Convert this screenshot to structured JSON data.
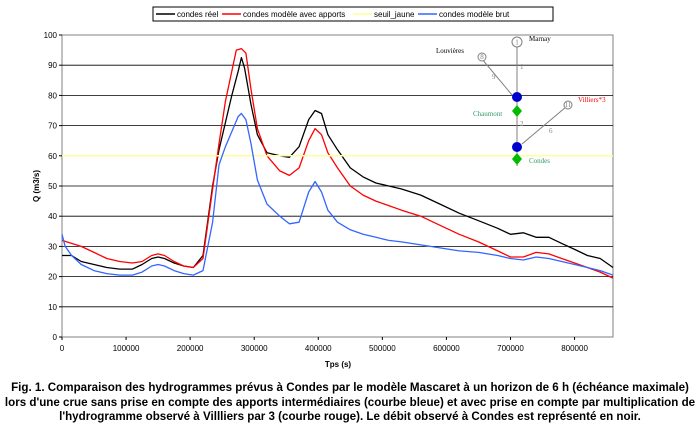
{
  "chart_data": {
    "type": "line",
    "xlabel": "Tps (s)",
    "ylabel": "Q (m3/s)",
    "xlim": [
      0,
      860000
    ],
    "ylim": [
      0,
      100
    ],
    "xticks": [
      0,
      100000,
      200000,
      300000,
      400000,
      500000,
      600000,
      700000,
      800000
    ],
    "yticks": [
      0,
      10,
      20,
      30,
      40,
      50,
      60,
      70,
      80,
      90,
      100
    ],
    "grid": "horizontal",
    "legend_position": "top",
    "series": [
      {
        "name": "condes réel",
        "color": "#000000",
        "x": [
          0,
          15000,
          30000,
          50000,
          70000,
          90000,
          110000,
          125000,
          140000,
          150000,
          160000,
          175000,
          190000,
          205000,
          220000,
          235000,
          245000,
          255000,
          265000,
          275000,
          280000,
          285000,
          295000,
          305000,
          320000,
          340000,
          355000,
          370000,
          385000,
          395000,
          405000,
          415000,
          430000,
          450000,
          470000,
          490000,
          510000,
          530000,
          560000,
          590000,
          620000,
          650000,
          680000,
          700000,
          720000,
          740000,
          760000,
          780000,
          800000,
          820000,
          840000,
          860000
        ],
        "values": [
          27,
          27,
          25,
          24,
          23,
          22.5,
          22.5,
          24,
          26,
          26.5,
          26,
          24.5,
          23.5,
          23,
          27,
          50,
          62,
          71,
          80,
          88,
          92.5,
          89,
          77,
          67,
          61,
          60,
          59.5,
          63,
          72,
          75,
          74,
          67,
          62,
          56,
          53,
          51,
          50,
          49,
          47,
          44,
          41,
          38.5,
          36,
          34,
          34.5,
          33,
          33,
          31,
          29,
          27,
          26,
          23
        ]
      },
      {
        "name": "condes modèle avec apports",
        "color": "#ff0000",
        "x": [
          0,
          15000,
          30000,
          50000,
          70000,
          90000,
          110000,
          125000,
          140000,
          150000,
          160000,
          175000,
          190000,
          205000,
          220000,
          235000,
          245000,
          255000,
          265000,
          272000,
          280000,
          287000,
          295000,
          305000,
          320000,
          340000,
          355000,
          370000,
          385000,
          395000,
          405000,
          415000,
          430000,
          450000,
          470000,
          490000,
          510000,
          530000,
          560000,
          590000,
          620000,
          650000,
          680000,
          700000,
          720000,
          740000,
          760000,
          780000,
          800000,
          820000,
          840000,
          860000
        ],
        "values": [
          32,
          31,
          30,
          28,
          26,
          25,
          24.5,
          25,
          27,
          27.5,
          27,
          25,
          23.5,
          23,
          26,
          49,
          64,
          78,
          88,
          95,
          95.5,
          94,
          82,
          69,
          60,
          55,
          53.5,
          56,
          65,
          69,
          67,
          61,
          56,
          50,
          47,
          45,
          43.5,
          42,
          40,
          37,
          34,
          31.5,
          28.5,
          26.5,
          26.5,
          28,
          27.5,
          26,
          24.5,
          23,
          21.5,
          19.5
        ]
      },
      {
        "name": "seuil_jaune",
        "color": "#ffff99",
        "x": [
          0,
          860000
        ],
        "values": [
          60,
          60
        ]
      },
      {
        "name": "condes modèle brut",
        "color": "#3366ff",
        "x": [
          0,
          5000,
          15000,
          30000,
          50000,
          70000,
          90000,
          110000,
          125000,
          140000,
          150000,
          160000,
          175000,
          190000,
          205000,
          220000,
          235000,
          245000,
          255000,
          265000,
          275000,
          280000,
          287000,
          295000,
          305000,
          320000,
          340000,
          355000,
          370000,
          385000,
          395000,
          405000,
          415000,
          430000,
          450000,
          470000,
          490000,
          510000,
          530000,
          560000,
          590000,
          620000,
          650000,
          680000,
          700000,
          720000,
          740000,
          760000,
          780000,
          800000,
          820000,
          840000,
          860000
        ],
        "values": [
          34,
          30,
          27,
          24,
          22,
          21,
          20.5,
          20.5,
          21.5,
          23.5,
          24,
          23.5,
          22,
          21,
          20.5,
          22,
          38,
          57,
          63,
          68,
          73,
          74,
          72,
          64,
          52,
          44,
          40,
          37.5,
          38,
          48,
          51.5,
          48,
          42,
          38,
          35.5,
          34,
          33,
          32,
          31.5,
          30.5,
          29.5,
          28.5,
          28,
          27,
          26,
          25.5,
          26.5,
          26,
          25,
          24,
          23,
          22,
          20.5
        ]
      }
    ]
  },
  "diagram": {
    "nodes": [
      {
        "id": "1",
        "label": "Marnay"
      },
      {
        "id": "8",
        "label": "Louvières"
      },
      {
        "id": "11",
        "label": "Villiers*3"
      }
    ],
    "reach_labels": [
      "1",
      "9",
      "2",
      "6"
    ],
    "stations": [
      "Chaumont",
      "Condes"
    ],
    "colors": {
      "upstream": "#808080",
      "junction": "#0000cc",
      "station": "#00bb00",
      "villiers": "#ff0000",
      "station_text": "#339966"
    }
  },
  "caption": "Fig. 1. Comparaison des hydrogrammes prévus à Condes par le modèle Mascaret à un horizon de 6 h (échéance maximale) lors d'une crue sans prise en compte des apports intermédiaires (courbe bleue) et avec prise en compte par multiplication de l'hydrogramme observé à Villliers par 3 (courbe rouge). Le débit observé à Condes est représenté en noir."
}
